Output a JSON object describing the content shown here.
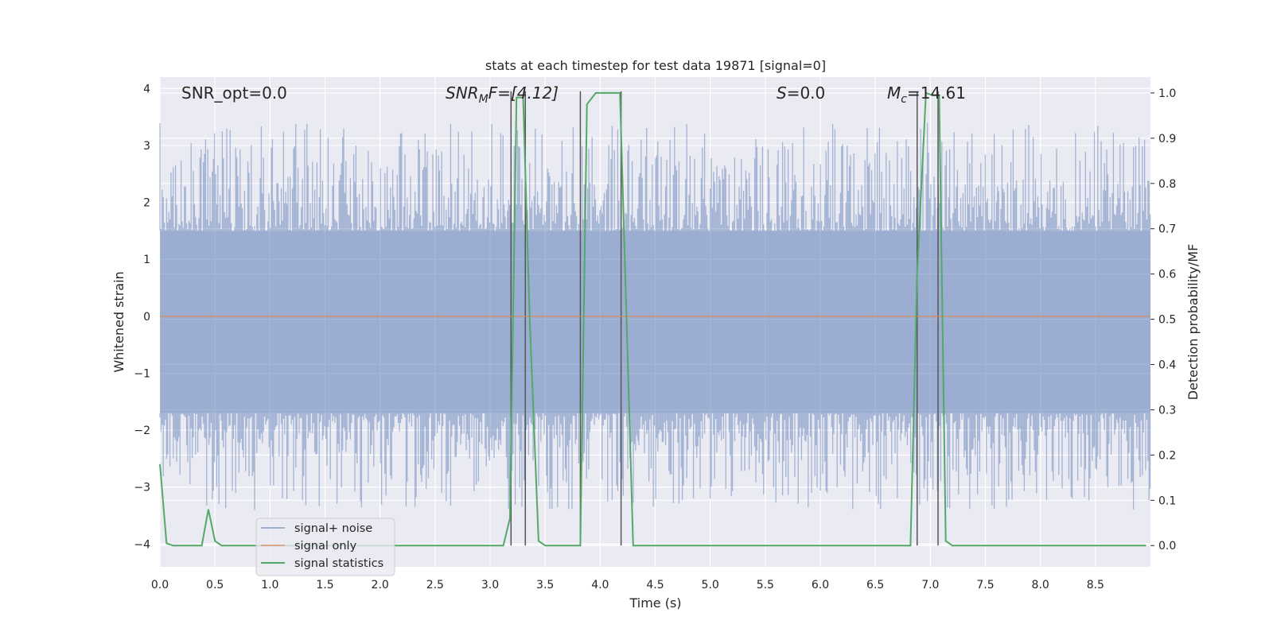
{
  "chart_data": {
    "type": "line",
    "title": "stats at each timestep for test data 19871 [signal=0]",
    "xlabel": "Time (s)",
    "ylabel_left": "Whitened strain",
    "ylabel_right": "Detection probability/MF",
    "xlim": [
      0.0,
      9.0
    ],
    "ylim_left": [
      -4.4,
      4.2
    ],
    "ylim_right": [
      -0.047,
      1.035
    ],
    "xticks": [
      0.0,
      0.5,
      1.0,
      1.5,
      2.0,
      2.5,
      3.0,
      3.5,
      4.0,
      4.5,
      5.0,
      5.5,
      6.0,
      6.5,
      7.0,
      7.5,
      8.0,
      8.5
    ],
    "yticks_left": [
      -4,
      -3,
      -2,
      -1,
      0,
      1,
      2,
      3,
      4
    ],
    "yticks_right": [
      0.0,
      0.1,
      0.2,
      0.3,
      0.4,
      0.5,
      0.6,
      0.7,
      0.8,
      0.9,
      1.0
    ],
    "xtick_labels": [
      "0.0",
      "0.5",
      "1.0",
      "1.5",
      "2.0",
      "2.5",
      "3.0",
      "3.5",
      "4.0",
      "4.5",
      "5.0",
      "5.5",
      "6.0",
      "6.5",
      "7.0",
      "7.5",
      "8.0",
      "8.5"
    ],
    "ytick_labels_left": [
      "−4",
      "−3",
      "−2",
      "−1",
      "0",
      "1",
      "2",
      "3",
      "4"
    ],
    "ytick_labels_right": [
      "0.0",
      "0.1",
      "0.2",
      "0.3",
      "0.4",
      "0.5",
      "0.6",
      "0.7",
      "0.8",
      "0.9",
      "1.0"
    ],
    "grid": true,
    "legend_position": "lower-left",
    "annotations": {
      "snr_opt": "SNR_opt=0.0",
      "snr_mf_main": "SNR",
      "snr_mf_sub": "M",
      "snr_mf_rest": "F=[4.12]",
      "s_main": "S",
      "s_rest": "=0.0",
      "mc_main": "M",
      "mc_sub": "c",
      "mc_rest": "=14.61"
    },
    "series": [
      {
        "name": "signal+ noise",
        "axis": "left",
        "color": "#4c72b0",
        "noise_band": [
          -1.7,
          1.5
        ],
        "note": "whitened noise strain, approx ±3.5 peaks"
      },
      {
        "name": "signal only",
        "axis": "left",
        "color": "#dd8452",
        "y": 0
      },
      {
        "name": "signal statistics",
        "axis": "right",
        "color": "#55a868",
        "x": [
          0.0,
          0.06,
          0.12,
          0.38,
          0.44,
          0.5,
          0.56,
          3.12,
          3.18,
          3.24,
          3.3,
          3.36,
          3.44,
          3.5,
          3.56,
          3.8,
          3.82,
          3.88,
          3.96,
          4.18,
          4.24,
          4.3,
          6.82,
          6.88,
          6.96,
          7.02,
          7.08,
          7.14,
          7.2,
          8.96
        ],
        "y": [
          0.18,
          0.005,
          0.0,
          0.0,
          0.08,
          0.01,
          0.0,
          0.0,
          0.06,
          0.99,
          0.99,
          0.5,
          0.01,
          0.0,
          0.0,
          0.0,
          0.0,
          0.975,
          1.0,
          1.0,
          0.5,
          0.0,
          0.0,
          0.6,
          1.0,
          0.995,
          0.995,
          0.01,
          0.0,
          0.0
        ]
      }
    ],
    "vlines": [
      3.19,
      3.32,
      3.82,
      4.19,
      6.88,
      7.07
    ]
  }
}
